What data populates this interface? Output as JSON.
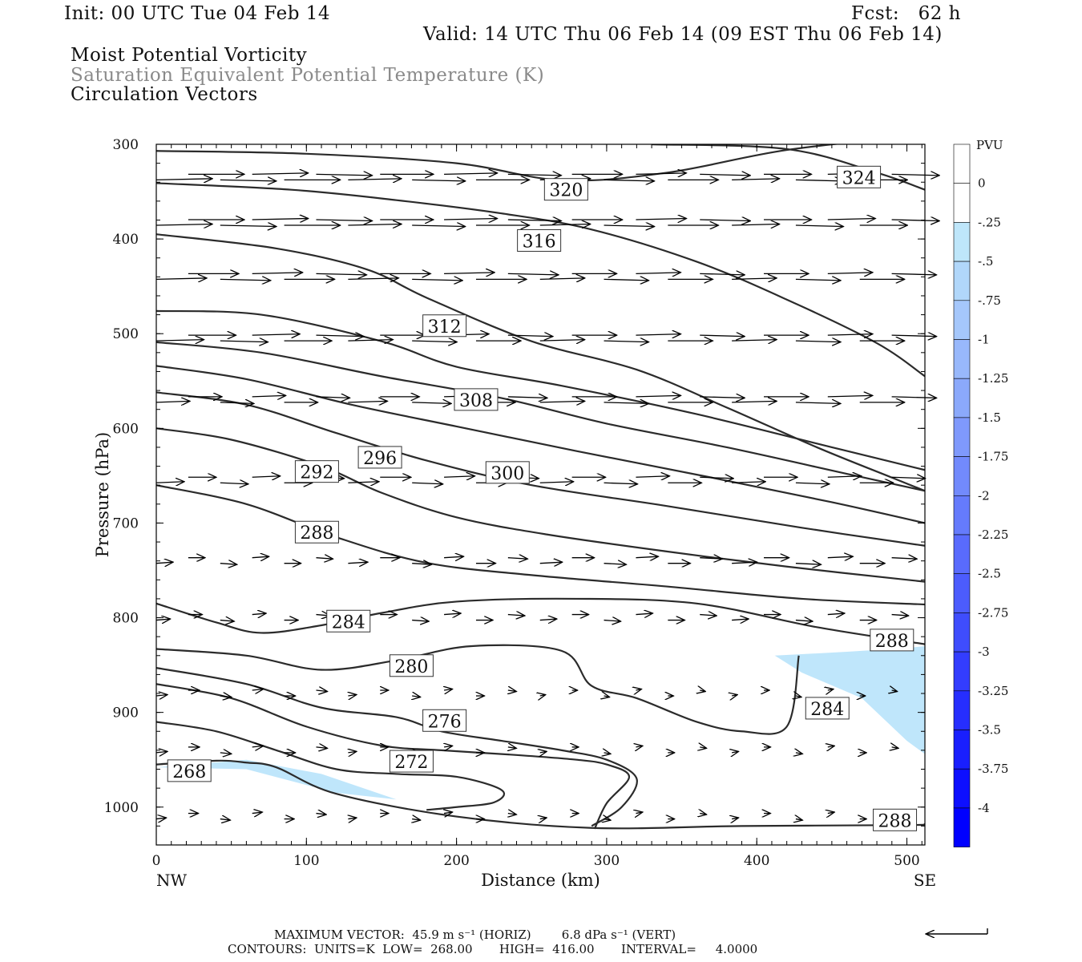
{
  "header": {
    "init": "Init: 00 UTC Tue 04 Feb 14",
    "fcst": "Fcst:   62 h",
    "valid": "Valid: 14 UTC Thu 06 Feb 14 (09 EST Thu 06 Feb 14)",
    "field1": "Moist Potential Vorticity",
    "field2": "Saturation Equivalent Potential Temperature (K)",
    "field3": "Circulation Vectors"
  },
  "footer": {
    "max_vector": "MAXIMUM VECTOR:  45.9 m s⁻¹ (HORIZ)        6.8 dPa s⁻¹ (VERT)",
    "contours": "CONTOURS:  UNITS=K  LOW=  268.00       HIGH=  416.00       INTERVAL=     4.0000"
  },
  "colors": {
    "contour": "#2b2b2b",
    "fill": "#bfe6fb",
    "fill_min": "#0000ff",
    "vector": "#000000"
  },
  "chart_data": {
    "type": "contour",
    "xlabel": "Distance (km)",
    "ylabel": "Pressure (hPa)",
    "xlim": [
      0,
      512
    ],
    "ylim": [
      1040,
      300
    ],
    "xticks": [
      "0",
      "100",
      "200",
      "300",
      "400",
      "500"
    ],
    "yticks": [
      "300",
      "400",
      "500",
      "600",
      "700",
      "800",
      "900",
      "1000"
    ],
    "x_end_labels": {
      "left": "NW",
      "right": "SE"
    },
    "colorbar": {
      "unit": "PVU",
      "levels": [
        "0",
        "-.25",
        "-.5",
        "-.75",
        "-1",
        "-1.25",
        "-1.5",
        "-1.75",
        "-2",
        "-2.25",
        "-2.5",
        "-2.75",
        "-3",
        "-3.25",
        "-3.5",
        "-3.75",
        "-4"
      ]
    },
    "contour_labels": [
      {
        "text": "324",
        "x": 468,
        "p": 335
      },
      {
        "text": "320",
        "x": 273,
        "p": 348
      },
      {
        "text": "316",
        "x": 255,
        "p": 402
      },
      {
        "text": "312",
        "x": 192,
        "p": 492
      },
      {
        "text": "308",
        "x": 213,
        "p": 570
      },
      {
        "text": "296",
        "x": 149,
        "p": 631
      },
      {
        "text": "300",
        "x": 234,
        "p": 647
      },
      {
        "text": "292",
        "x": 107,
        "p": 646
      },
      {
        "text": "288",
        "x": 107,
        "p": 710
      },
      {
        "text": "284",
        "x": 128,
        "p": 804
      },
      {
        "text": "288",
        "x": 490,
        "p": 824
      },
      {
        "text": "280",
        "x": 170,
        "p": 851
      },
      {
        "text": "284",
        "x": 447,
        "p": 896
      },
      {
        "text": "276",
        "x": 192,
        "p": 909
      },
      {
        "text": "272",
        "x": 170,
        "p": 952
      },
      {
        "text": "268",
        "x": 22,
        "p": 962
      },
      {
        "text": "288",
        "x": 492,
        "p": 1014
      }
    ],
    "contours": [
      {
        "x": [
          0,
          100,
          200,
          270,
          340,
          420,
          512
        ],
        "p": [
          307,
          310,
          320,
          338,
          330,
          306,
          290
        ]
      },
      {
        "x": [
          330,
          420,
          480,
          512
        ],
        "p": [
          300,
          305,
          330,
          348
        ]
      },
      {
        "x": [
          0,
          90,
          160,
          230,
          290,
          360,
          420,
          480,
          512
        ],
        "p": [
          341,
          348,
          359,
          373,
          390,
          424,
          464,
          510,
          545
        ]
      },
      {
        "x": [
          0,
          80,
          140,
          180,
          250,
          320,
          380,
          440,
          490,
          512
        ],
        "p": [
          395,
          410,
          432,
          462,
          508,
          538,
          578,
          620,
          652,
          666
        ]
      },
      {
        "x": [
          0,
          70,
          150,
          200,
          270,
          360,
          450,
          512
        ],
        "p": [
          476,
          480,
          508,
          535,
          555,
          585,
          620,
          644
        ]
      },
      {
        "x": [
          0,
          70,
          150,
          230,
          300,
          380,
          460,
          512
        ],
        "p": [
          509,
          520,
          545,
          568,
          595,
          620,
          648,
          666
        ]
      },
      {
        "x": [
          0,
          60,
          130,
          200,
          280,
          370,
          450,
          512
        ],
        "p": [
          534,
          548,
          575,
          598,
          624,
          652,
          678,
          700
        ]
      },
      {
        "x": [
          0,
          60,
          120,
          180,
          250,
          340,
          430,
          512
        ],
        "p": [
          562,
          575,
          605,
          634,
          660,
          682,
          705,
          724
        ]
      },
      {
        "x": [
          0,
          50,
          110,
          150,
          200,
          260,
          340,
          420,
          512
        ],
        "p": [
          600,
          612,
          640,
          668,
          694,
          712,
          730,
          746,
          762
        ]
      },
      {
        "x": [
          0,
          60,
          120,
          180,
          250,
          340,
          430,
          512
        ],
        "p": [
          660,
          680,
          715,
          742,
          755,
          767,
          780,
          786
        ]
      },
      {
        "x": [
          0,
          40,
          70,
          110,
          150,
          200,
          280,
          360,
          440,
          512
        ],
        "p": [
          785,
          805,
          816,
          808,
          795,
          783,
          780,
          785,
          810,
          828
        ]
      },
      {
        "x": [
          0,
          60,
          110,
          160,
          210,
          270,
          290,
          320,
          360,
          390,
          420,
          428
        ],
        "p": [
          833,
          840,
          855,
          845,
          830,
          835,
          872,
          885,
          910,
          920,
          915,
          840
        ]
      },
      {
        "x": [
          0,
          60,
          110,
          160,
          190,
          230,
          270,
          300,
          320,
          310,
          290
        ],
        "p": [
          853,
          870,
          895,
          905,
          920,
          930,
          940,
          950,
          970,
          1000,
          1020
        ]
      },
      {
        "x": [
          0,
          50,
          100,
          150,
          190,
          240,
          280,
          300,
          315,
          300,
          292
        ],
        "p": [
          870,
          885,
          915,
          935,
          940,
          945,
          950,
          955,
          968,
          996,
          1023
        ]
      },
      {
        "x": [
          0,
          40,
          80,
          120,
          160,
          200,
          230,
          225,
          200,
          180
        ],
        "p": [
          910,
          920,
          940,
          960,
          965,
          968,
          982,
          995,
          1000,
          1003
        ]
      },
      {
        "x": [
          0,
          40,
          60,
          80,
          120,
          200,
          290,
          390,
          500,
          512
        ],
        "p": [
          955,
          951,
          953,
          958,
          986,
          1010,
          1022,
          1020,
          1019,
          1018
        ]
      }
    ],
    "filled_regions": [
      {
        "x": [
          0,
          60,
          110,
          160,
          120,
          60,
          0
        ],
        "p": [
          958,
          950,
          965,
          992,
          985,
          960,
          958
        ]
      },
      {
        "x": [
          412,
          460,
          500,
          512,
          512,
          500,
          470,
          430,
          412
        ],
        "p": [
          840,
          836,
          832,
          830,
          944,
          930,
          885,
          858,
          840
        ]
      }
    ],
    "vectors_rows": [
      335,
      383,
      440,
      505,
      570,
      655,
      740,
      800,
      880,
      940,
      1010
    ],
    "vectors_u": [
      [
        1.0,
        0.95,
        0.9,
        0.85
      ],
      [
        1.0,
        0.95,
        0.9,
        0.85
      ],
      [
        0.9,
        0.9,
        0.8,
        0.8
      ],
      [
        0.85,
        0.8,
        0.8,
        0.8
      ],
      [
        0.6,
        0.7,
        0.8,
        0.8
      ],
      [
        0.5,
        0.55,
        0.6,
        0.6
      ],
      [
        0.3,
        0.35,
        0.4,
        0.45
      ],
      [
        0.25,
        0.3,
        0.3,
        0.3
      ],
      [
        0.2,
        0.15,
        0.1,
        0.1
      ],
      [
        0.2,
        0.15,
        0.12,
        0.12
      ],
      [
        0.18,
        0.15,
        0.12,
        0.12
      ]
    ],
    "max_vector_arrow": "left"
  }
}
